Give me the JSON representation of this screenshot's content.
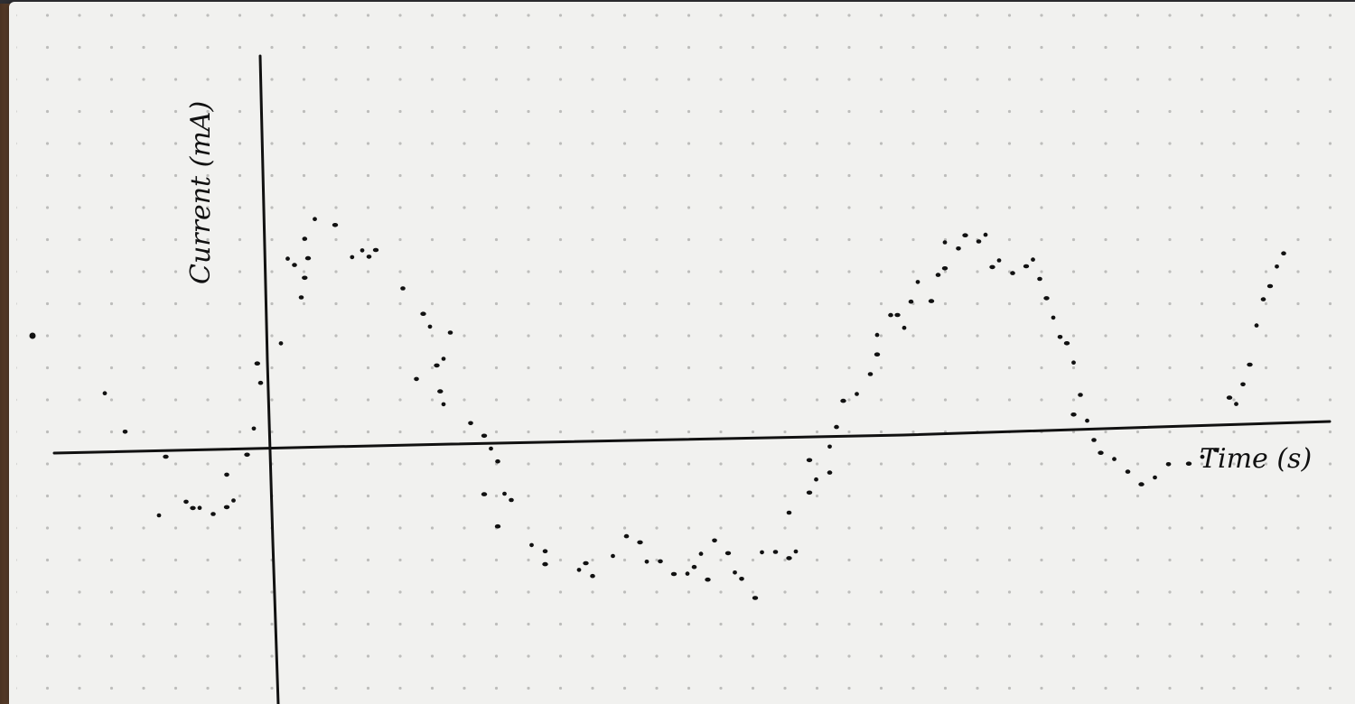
{
  "chart_data": {
    "type": "scatter",
    "xlabel": "Time (s)",
    "ylabel": "Current (mA)",
    "grid": "dot-grid paper",
    "legend": "none",
    "xlim": [
      -3.2,
      15.1
    ],
    "ylim": [
      -2.6,
      5.2
    ],
    "series": [
      {
        "points": [
          [
            -2.4,
            0.9
          ],
          [
            -2.1,
            0.3
          ],
          [
            -1.5,
            -0.1
          ],
          [
            -1.6,
            -1.0
          ],
          [
            -1.2,
            -0.8
          ],
          [
            -1.1,
            -0.9
          ],
          [
            -1.0,
            -0.9
          ],
          [
            -0.8,
            -1.0
          ],
          [
            -0.6,
            -0.9
          ],
          [
            -0.5,
            -0.8
          ],
          [
            -0.6,
            -0.4
          ],
          [
            -0.3,
            -0.1
          ],
          [
            -0.2,
            0.3
          ],
          [
            -0.1,
            1.0
          ],
          [
            -0.15,
            1.3
          ],
          [
            0.2,
            1.6
          ],
          [
            0.5,
            2.3
          ],
          [
            0.6,
            2.9
          ],
          [
            0.3,
            2.9
          ],
          [
            0.4,
            2.8
          ],
          [
            0.55,
            2.6
          ],
          [
            0.7,
            3.5
          ],
          [
            0.55,
            3.2
          ],
          [
            1.0,
            3.4
          ],
          [
            1.25,
            2.9
          ],
          [
            1.5,
            2.9
          ],
          [
            1.6,
            3.0
          ],
          [
            1.4,
            3.0
          ],
          [
            2.0,
            2.4
          ],
          [
            2.3,
            2.0
          ],
          [
            2.4,
            1.8
          ],
          [
            2.2,
            1.0
          ],
          [
            2.5,
            1.2
          ],
          [
            2.6,
            1.3
          ],
          [
            2.7,
            1.7
          ],
          [
            2.55,
            0.8
          ],
          [
            2.6,
            0.6
          ],
          [
            3.0,
            0.3
          ],
          [
            3.2,
            0.1
          ],
          [
            3.3,
            -0.1
          ],
          [
            3.4,
            -0.3
          ],
          [
            3.2,
            -0.8
          ],
          [
            3.5,
            -0.8
          ],
          [
            3.6,
            -0.9
          ],
          [
            3.4,
            -1.3
          ],
          [
            3.9,
            -1.6
          ],
          [
            4.1,
            -1.7
          ],
          [
            4.1,
            -1.9
          ],
          [
            4.6,
            -2.0
          ],
          [
            4.8,
            -2.1
          ],
          [
            4.7,
            -1.9
          ],
          [
            5.1,
            -1.8
          ],
          [
            5.3,
            -1.5
          ],
          [
            5.5,
            -1.6
          ],
          [
            5.6,
            -1.9
          ],
          [
            5.8,
            -1.9
          ],
          [
            6.0,
            -2.1
          ],
          [
            6.2,
            -2.1
          ],
          [
            6.3,
            -2.0
          ],
          [
            6.5,
            -2.2
          ],
          [
            6.4,
            -1.8
          ],
          [
            6.6,
            -1.6
          ],
          [
            6.8,
            -1.8
          ],
          [
            6.9,
            -2.1
          ],
          [
            7.0,
            -2.2
          ],
          [
            7.2,
            -2.5
          ],
          [
            7.3,
            -1.8
          ],
          [
            7.5,
            -1.8
          ],
          [
            7.7,
            -1.9
          ],
          [
            7.8,
            -1.8
          ],
          [
            7.7,
            -1.2
          ],
          [
            8.0,
            -0.9
          ],
          [
            8.1,
            -0.7
          ],
          [
            8.3,
            -0.6
          ],
          [
            8.0,
            -0.4
          ],
          [
            8.3,
            -0.2
          ],
          [
            8.4,
            0.1
          ],
          [
            8.5,
            0.5
          ],
          [
            8.7,
            0.6
          ],
          [
            8.9,
            0.9
          ],
          [
            9.0,
            1.2
          ],
          [
            9.0,
            1.5
          ],
          [
            9.2,
            1.8
          ],
          [
            9.3,
            1.8
          ],
          [
            9.4,
            1.6
          ],
          [
            9.5,
            2.0
          ],
          [
            9.8,
            2.0
          ],
          [
            9.6,
            2.3
          ],
          [
            9.9,
            2.4
          ],
          [
            10.0,
            2.5
          ],
          [
            10.0,
            2.9
          ],
          [
            10.2,
            2.8
          ],
          [
            10.3,
            3.0
          ],
          [
            10.6,
            3.0
          ],
          [
            10.5,
            2.9
          ],
          [
            10.7,
            2.5
          ],
          [
            10.8,
            2.6
          ],
          [
            11.0,
            2.4
          ],
          [
            11.2,
            2.5
          ],
          [
            11.3,
            2.6
          ],
          [
            11.4,
            2.3
          ],
          [
            11.5,
            2.0
          ],
          [
            11.6,
            1.7
          ],
          [
            11.7,
            1.4
          ],
          [
            11.8,
            1.3
          ],
          [
            11.9,
            1.0
          ],
          [
            12.0,
            0.5
          ],
          [
            11.9,
            0.2
          ],
          [
            12.1,
            0.1
          ],
          [
            12.2,
            -0.2
          ],
          [
            12.3,
            -0.4
          ],
          [
            12.5,
            -0.5
          ],
          [
            12.7,
            -0.7
          ],
          [
            12.9,
            -0.9
          ],
          [
            13.1,
            -0.8
          ],
          [
            13.3,
            -0.6
          ],
          [
            13.6,
            -0.6
          ],
          [
            13.8,
            -0.5
          ],
          [
            14.0,
            -0.4
          ],
          [
            14.2,
            0.4
          ],
          [
            14.3,
            0.3
          ],
          [
            14.4,
            0.6
          ],
          [
            14.5,
            0.9
          ],
          [
            14.6,
            1.5
          ],
          [
            14.7,
            1.9
          ],
          [
            14.8,
            2.1
          ],
          [
            14.9,
            2.4
          ],
          [
            15.0,
            2.6
          ]
        ]
      }
    ]
  }
}
